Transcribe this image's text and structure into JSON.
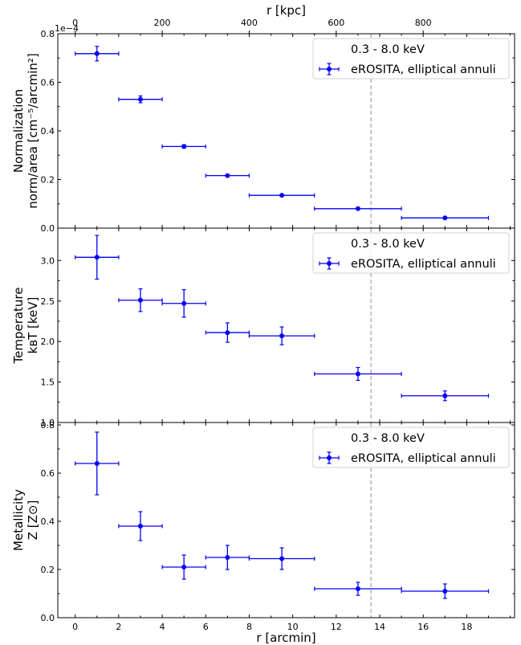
{
  "chart_data": {
    "type": "scatter",
    "xlabel": "r [arcmin]",
    "top_xlabel": "r [kpc]",
    "x_range": [
      -0.8,
      20.2
    ],
    "x_ticks": [
      "0",
      "2",
      "4",
      "6",
      "8",
      "10",
      "12",
      "14",
      "16",
      "18"
    ],
    "top_x_ticks": [
      "0",
      "200",
      "400",
      "600",
      "800"
    ],
    "top_x_ticks_arcmin": [
      0,
      4,
      8,
      12,
      16
    ],
    "vertical_line_x": 13.6,
    "vertical_line_color": "#a0a0a0",
    "marker_color": "#0000ff",
    "panels": [
      {
        "ylabel_lines": [
          "Normalization",
          "norm/area [cm⁻⁵/arcmin²]"
        ],
        "y_range": [
          0,
          0.8
        ],
        "y_ticks": [
          "0.0",
          "0.2",
          "0.4",
          "0.6",
          "0.8"
        ],
        "offset_text": "1e−4",
        "legend": {
          "title": "0.3 - 8.0 keV",
          "label": "eROSITA, elliptical annuli",
          "placement": "upper right"
        },
        "points": [
          {
            "x": 1.0,
            "xerr": 1.0,
            "y": 0.718,
            "yerr": 0.03
          },
          {
            "x": 3.0,
            "xerr": 1.0,
            "y": 0.53,
            "yerr": 0.014
          },
          {
            "x": 5.0,
            "xerr": 1.0,
            "y": 0.336,
            "yerr": 0.007
          },
          {
            "x": 7.0,
            "xerr": 1.0,
            "y": 0.216,
            "yerr": 0.004
          },
          {
            "x": 9.5,
            "xerr": 1.5,
            "y": 0.135,
            "yerr": 0.003
          },
          {
            "x": 13.0,
            "xerr": 2.0,
            "y": 0.08,
            "yerr": 0.002
          },
          {
            "x": 17.0,
            "xerr": 2.0,
            "y": 0.042,
            "yerr": 0.002
          }
        ]
      },
      {
        "ylabel_lines": [
          "Temperature",
          "kʙT [keV]"
        ],
        "y_range": [
          1.0,
          3.4
        ],
        "y_ticks": [
          "1.0",
          "1.5",
          "2.0",
          "2.5",
          "3.0"
        ],
        "y_tick_values": [
          1.0,
          1.5,
          2.0,
          2.5,
          3.0
        ],
        "offset_text": "",
        "legend": {
          "title": "0.3 - 8.0 keV",
          "label": "eROSITA, elliptical annuli",
          "placement": "upper right"
        },
        "points": [
          {
            "x": 1.0,
            "xerr": 1.0,
            "y": 3.04,
            "yerr": 0.27
          },
          {
            "x": 3.0,
            "xerr": 1.0,
            "y": 2.51,
            "yerr": 0.14
          },
          {
            "x": 5.0,
            "xerr": 1.0,
            "y": 2.47,
            "yerr": 0.17
          },
          {
            "x": 7.0,
            "xerr": 1.0,
            "y": 2.11,
            "yerr": 0.12
          },
          {
            "x": 9.5,
            "xerr": 1.5,
            "y": 2.07,
            "yerr": 0.11
          },
          {
            "x": 13.0,
            "xerr": 2.0,
            "y": 1.6,
            "yerr": 0.08
          },
          {
            "x": 17.0,
            "xerr": 2.0,
            "y": 1.33,
            "yerr": 0.06
          }
        ]
      },
      {
        "ylabel_lines": [
          "Metallicity",
          "Z [Z⊙]"
        ],
        "y_range": [
          0,
          0.81
        ],
        "y_ticks": [
          "0.0",
          "0.2",
          "0.4",
          "0.6",
          "0.8"
        ],
        "y_tick_values": [
          0.0,
          0.2,
          0.4,
          0.6,
          0.8
        ],
        "offset_text": "",
        "legend": {
          "title": "0.3 - 8.0 keV",
          "label": "eROSITA, elliptical annuli",
          "placement": "upper right"
        },
        "points": [
          {
            "x": 1.0,
            "xerr": 1.0,
            "y": 0.64,
            "yerr": 0.13
          },
          {
            "x": 3.0,
            "xerr": 1.0,
            "y": 0.38,
            "yerr": 0.06
          },
          {
            "x": 5.0,
            "xerr": 1.0,
            "y": 0.21,
            "yerr": 0.05
          },
          {
            "x": 7.0,
            "xerr": 1.0,
            "y": 0.25,
            "yerr": 0.05
          },
          {
            "x": 9.5,
            "xerr": 1.5,
            "y": 0.245,
            "yerr": 0.045
          },
          {
            "x": 13.0,
            "xerr": 2.0,
            "y": 0.12,
            "yerr": 0.027
          },
          {
            "x": 17.0,
            "xerr": 2.0,
            "y": 0.11,
            "yerr": 0.03
          }
        ]
      }
    ]
  }
}
